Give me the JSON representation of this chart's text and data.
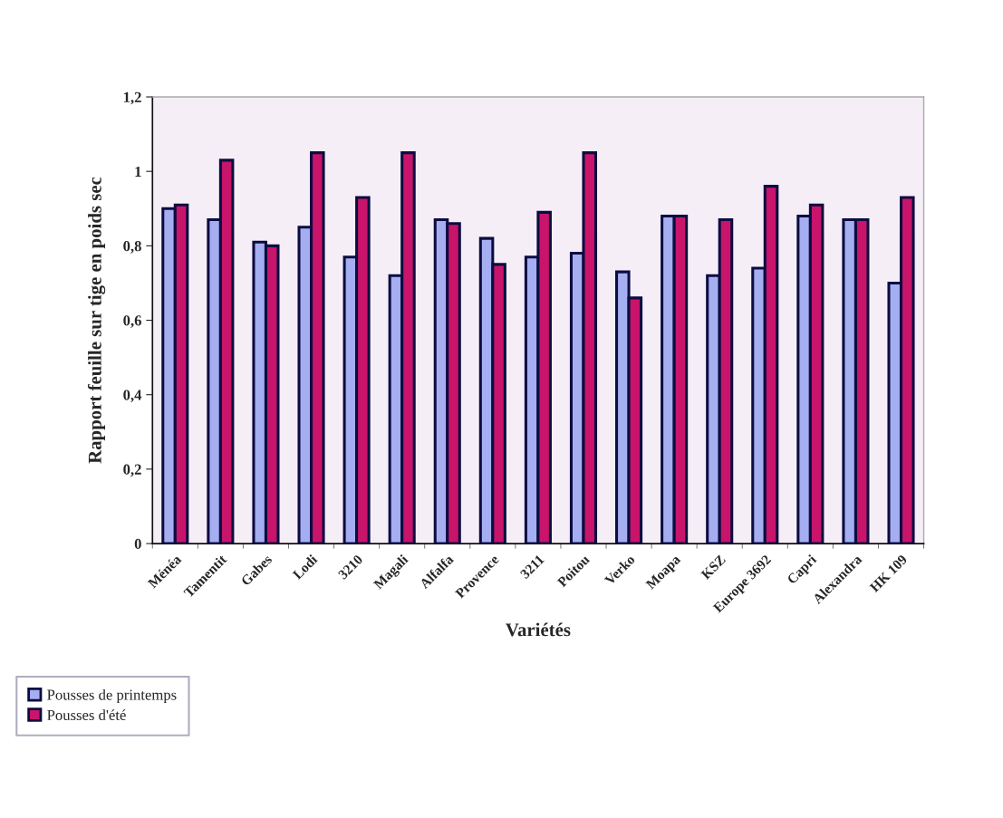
{
  "chart_data": {
    "type": "bar",
    "xlabel": "Variétés",
    "ylabel": "Rapport feuille sur tige en poids sec",
    "categories": [
      "Ménéa",
      "Tamentit",
      "Gabes",
      "Lodi",
      "3210",
      "Magali",
      "Alfalfa",
      "Provence",
      "3211",
      "Poitou",
      "Verko",
      "Moapa",
      "KSZ",
      "Europe 3692",
      "Capri",
      "Alexandra",
      "HK 109"
    ],
    "series": [
      {
        "name": "Pousses de printemps",
        "color": "#a4aef0",
        "values": [
          0.9,
          0.87,
          0.81,
          0.85,
          0.77,
          0.72,
          0.87,
          0.82,
          0.77,
          0.78,
          0.73,
          0.88,
          0.72,
          0.74,
          0.88,
          0.87,
          0.7
        ]
      },
      {
        "name": "Pousses d'été",
        "color": "#c8146a",
        "values": [
          0.91,
          1.03,
          0.8,
          1.05,
          0.93,
          1.05,
          0.86,
          0.75,
          0.89,
          1.05,
          0.66,
          0.88,
          0.87,
          0.96,
          0.91,
          0.87,
          0.93
        ]
      }
    ],
    "ylim": [
      0,
      1.2
    ],
    "yticks": [
      0,
      {
        "value": 0.2,
        "label": "0,2"
      },
      {
        "value": 0.4,
        "label": "0,4"
      },
      {
        "value": 0.6,
        "label": "0,6"
      },
      {
        "value": 0.8,
        "label": "0,8"
      },
      1,
      {
        "value": 1.2,
        "label": "1,2"
      }
    ],
    "grid": false,
    "legend": "bottom left"
  }
}
